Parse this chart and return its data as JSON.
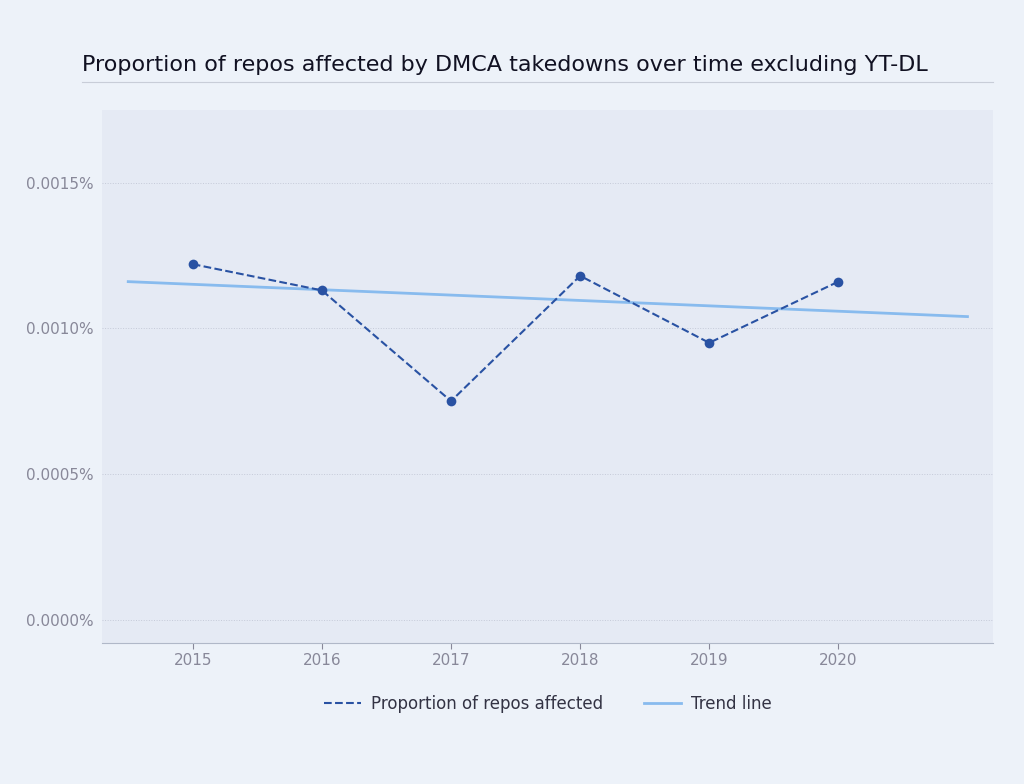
{
  "title": "Proportion of repos affected by DMCA takedowns over time excluding YT-DL",
  "years": [
    2015,
    2016,
    2017,
    2018,
    2019,
    2020
  ],
  "proportions": [
    0.00122,
    0.00113,
    0.00075,
    0.00118,
    0.00095,
    0.00116
  ],
  "trend_x": [
    2014.5,
    2021.0
  ],
  "trend_y": [
    0.00116,
    0.00104
  ],
  "data_color": "#2952a3",
  "trend_color": "#88bbee",
  "background_outer": "#edf2f9",
  "background_inner": "#e5eaf4",
  "grid_color": "#c5cad8",
  "title_fontsize": 16,
  "axis_tick_fontsize": 11,
  "legend_fontsize": 12,
  "yticks": [
    0.0,
    0.0005,
    0.001,
    0.0015
  ],
  "ylim": [
    -8e-05,
    0.00175
  ],
  "xlim": [
    2014.3,
    2021.2
  ]
}
